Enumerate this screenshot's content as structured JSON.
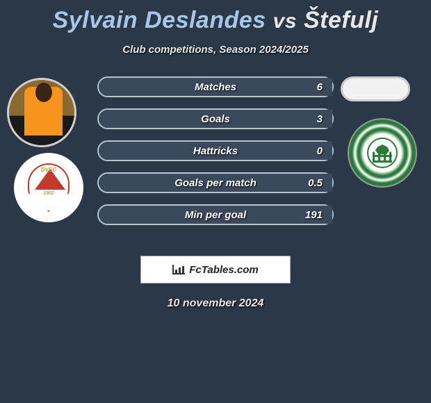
{
  "colors": {
    "background": "#2a3847",
    "player1_name_color": "#a7c6e8",
    "player2_name_color": "#e8e8e8",
    "stat_bar_bg": "#3a4a5c",
    "stat_bar_border": "#b8c4d0",
    "text_white": "#ffffff"
  },
  "title": {
    "player1": "Sylvain Deslandes",
    "vs": "vs",
    "player2": "Štefulj"
  },
  "subtitle": "Club competitions, Season 2024/2025",
  "club_left": {
    "abbr": "DVSC",
    "year": "1902"
  },
  "stats": [
    {
      "label": "Matches",
      "right_value": "6",
      "fill_pct": 1,
      "fill_color": "#3a4a5c"
    },
    {
      "label": "Goals",
      "right_value": "3",
      "fill_pct": 1,
      "fill_color": "#3a4a5c"
    },
    {
      "label": "Hattricks",
      "right_value": "0",
      "fill_pct": 1,
      "fill_color": "#3a4a5c"
    },
    {
      "label": "Goals per match",
      "right_value": "0.5",
      "fill_pct": 1,
      "fill_color": "#3a4a5c"
    },
    {
      "label": "Min per goal",
      "right_value": "191",
      "fill_pct": 1,
      "fill_color": "#3a4a5c"
    }
  ],
  "logo_text": "FcTables.com",
  "date": "10 november 2024"
}
